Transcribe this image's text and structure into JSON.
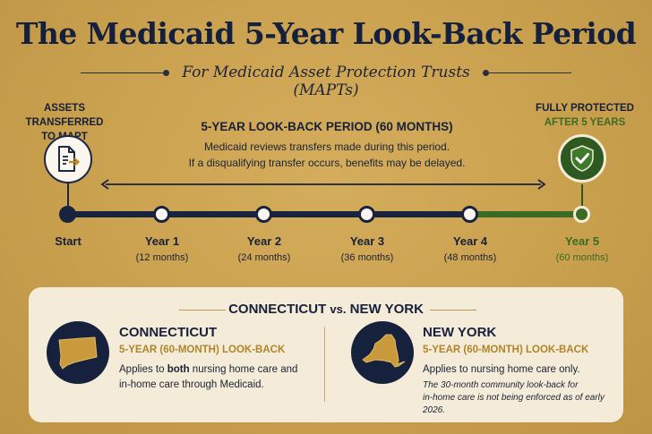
{
  "title": "The Medicaid 5-Year Look-Back Period",
  "subtitle": "For Medicaid Asset Protection Trusts (MAPTs)",
  "start_node": {
    "line1": "ASSETS TRANSFERRED",
    "line2": "TO MAPT"
  },
  "end_node": {
    "line1": "FULLY PROTECTED",
    "line2": "AFTER 5 YEARS"
  },
  "period": {
    "title": "5-YEAR LOOK-BACK PERIOD (60 MONTHS)",
    "desc1": "Medicaid reviews transfers made during this period.",
    "desc2": "If a disqualifying transfer occurs, benefits may be delayed."
  },
  "timeline": [
    {
      "label": "Start",
      "months": ""
    },
    {
      "label": "Year 1",
      "months": "(12 months)"
    },
    {
      "label": "Year 2",
      "months": "(24 months)"
    },
    {
      "label": "Year 3",
      "months": "(36 months)"
    },
    {
      "label": "Year 4",
      "months": "(48 months)"
    },
    {
      "label": "Year 5",
      "months": "(60 months)"
    }
  ],
  "comparison": {
    "title_left": "CONNECTICUT",
    "title_vs": "vs.",
    "title_right": "NEW YORK",
    "ct": {
      "name": "CONNECTICUT",
      "lookback": "5-YEAR (60-MONTH) LOOK-BACK",
      "desc_pre": "Applies to ",
      "desc_bold": "both",
      "desc_post": " nursing home care and",
      "desc_line2": "in-home care through Medicaid."
    },
    "ny": {
      "name": "NEW YORK",
      "lookback": "5-YEAR (60-MONTH) LOOK-BACK",
      "desc": "Applies to nursing home care only.",
      "note1": "The 30-month community look-back for",
      "note2": "in-home care is not being enforced as of early 2026."
    }
  },
  "icons": {
    "start": "document-arrow-icon",
    "end": "shield-check-icon",
    "ct": "connecticut-map-icon",
    "ny": "new-york-map-icon"
  },
  "colors": {
    "navy": "#18233f",
    "green": "#3a6b25",
    "gold": "#c9a04e",
    "panel": "#f4ecd8",
    "accent": "#b0852a"
  }
}
